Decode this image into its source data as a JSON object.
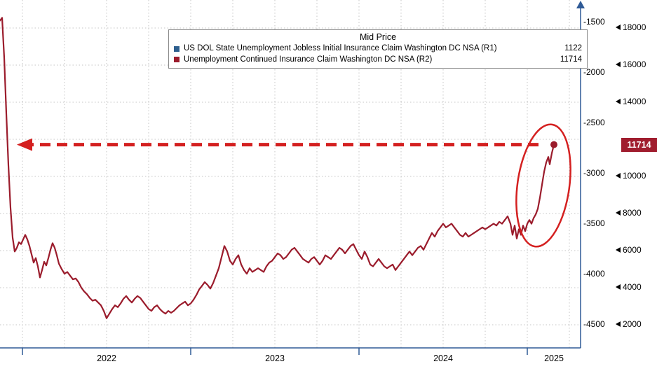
{
  "colors": {
    "line": "#9b1c2c",
    "annotation": "#d42020",
    "badge_bg": "#a01d2e",
    "badge_text": "#ffffff",
    "legend_swatch_blue": "#2e5f8e",
    "legend_swatch_red": "#9b1c2c",
    "axis_line": "#2f5a96",
    "grid_line": "#c4c4c4"
  },
  "legend": {
    "title": "Mid Price",
    "entries": [
      {
        "label": "US DOL State Unemployment Jobless Initial Insurance Claim Washington DC NSA  (R1)",
        "value": "1122"
      },
      {
        "label": "Unemployment Continued Insurance Claim Washington DC NSA  (R2)",
        "value": "11714"
      }
    ]
  },
  "badge": {
    "label": "11714"
  },
  "chart_data": {
    "type": "line",
    "title": "Mid Price",
    "grid": "dotted",
    "x_axis": {
      "tick_labels": [
        "2022",
        "2023",
        "2024",
        "2025"
      ]
    },
    "y_axis_inner_r1": {
      "tick_labels": [
        "-1500",
        "-2000",
        "-2500",
        "-3000",
        "-3500",
        "-4000",
        "-4500"
      ]
    },
    "y_axis_outer_r2": {
      "visible_tick_labels": [
        "18000",
        "16000",
        "14000",
        "10000",
        "8000",
        "6000",
        "4000",
        "2000"
      ],
      "grid_values": [
        18000,
        16000,
        14000,
        12000,
        10000,
        8000,
        6000,
        4000,
        2000
      ],
      "label_covered_by_badge": "12000",
      "range": [
        1500,
        18800
      ]
    },
    "series": [
      {
        "name": "US DOL State Unemployment Jobless Initial Insurance Claim Washington DC NSA (R1)",
        "axis": "R1",
        "last_value": 1122,
        "plotted_visibly": false
      },
      {
        "name": "Unemployment Continued Insurance Claim Washington DC NSA (R2)",
        "axis": "R2",
        "last_value": 11714,
        "points": [
          [
            0,
            18400
          ],
          [
            3,
            18550
          ],
          [
            6,
            16400
          ],
          [
            9,
            13400
          ],
          [
            12,
            10600
          ],
          [
            15,
            8300
          ],
          [
            18,
            6700
          ],
          [
            21,
            5950
          ],
          [
            24,
            6150
          ],
          [
            27,
            6450
          ],
          [
            30,
            6350
          ],
          [
            33,
            6600
          ],
          [
            36,
            6850
          ],
          [
            39,
            6600
          ],
          [
            42,
            6250
          ],
          [
            45,
            5800
          ],
          [
            48,
            5350
          ],
          [
            51,
            5600
          ],
          [
            54,
            5150
          ],
          [
            57,
            4550
          ],
          [
            60,
            4950
          ],
          [
            63,
            5400
          ],
          [
            66,
            5200
          ],
          [
            69,
            5600
          ],
          [
            72,
            6050
          ],
          [
            75,
            6400
          ],
          [
            78,
            6150
          ],
          [
            81,
            5750
          ],
          [
            84,
            5300
          ],
          [
            88,
            5000
          ],
          [
            92,
            4750
          ],
          [
            96,
            4850
          ],
          [
            100,
            4650
          ],
          [
            104,
            4450
          ],
          [
            108,
            4500
          ],
          [
            112,
            4300
          ],
          [
            116,
            4000
          ],
          [
            120,
            3800
          ],
          [
            124,
            3650
          ],
          [
            128,
            3450
          ],
          [
            132,
            3300
          ],
          [
            136,
            3350
          ],
          [
            140,
            3200
          ],
          [
            144,
            3050
          ],
          [
            148,
            2750
          ],
          [
            152,
            2350
          ],
          [
            156,
            2600
          ],
          [
            160,
            2850
          ],
          [
            164,
            3050
          ],
          [
            168,
            2950
          ],
          [
            172,
            3150
          ],
          [
            176,
            3400
          ],
          [
            180,
            3550
          ],
          [
            184,
            3350
          ],
          [
            188,
            3200
          ],
          [
            192,
            3400
          ],
          [
            196,
            3550
          ],
          [
            200,
            3450
          ],
          [
            204,
            3250
          ],
          [
            208,
            3050
          ],
          [
            212,
            2850
          ],
          [
            216,
            2750
          ],
          [
            220,
            2950
          ],
          [
            224,
            3050
          ],
          [
            228,
            2850
          ],
          [
            232,
            2700
          ],
          [
            236,
            2600
          ],
          [
            240,
            2750
          ],
          [
            244,
            2650
          ],
          [
            248,
            2750
          ],
          [
            252,
            2900
          ],
          [
            256,
            3050
          ],
          [
            260,
            3150
          ],
          [
            264,
            3250
          ],
          [
            268,
            3050
          ],
          [
            272,
            3150
          ],
          [
            276,
            3350
          ],
          [
            280,
            3600
          ],
          [
            284,
            3900
          ],
          [
            288,
            4100
          ],
          [
            292,
            4300
          ],
          [
            296,
            4150
          ],
          [
            300,
            3950
          ],
          [
            304,
            4250
          ],
          [
            308,
            4650
          ],
          [
            312,
            5050
          ],
          [
            316,
            5650
          ],
          [
            320,
            6250
          ],
          [
            324,
            5950
          ],
          [
            328,
            5450
          ],
          [
            332,
            5250
          ],
          [
            336,
            5550
          ],
          [
            340,
            5750
          ],
          [
            344,
            5250
          ],
          [
            348,
            4950
          ],
          [
            352,
            4750
          ],
          [
            356,
            5050
          ],
          [
            360,
            4850
          ],
          [
            364,
            4950
          ],
          [
            368,
            5050
          ],
          [
            372,
            4950
          ],
          [
            376,
            4850
          ],
          [
            380,
            5150
          ],
          [
            384,
            5350
          ],
          [
            388,
            5450
          ],
          [
            392,
            5650
          ],
          [
            396,
            5850
          ],
          [
            400,
            5750
          ],
          [
            404,
            5550
          ],
          [
            408,
            5650
          ],
          [
            412,
            5850
          ],
          [
            416,
            6050
          ],
          [
            420,
            6150
          ],
          [
            424,
            5950
          ],
          [
            428,
            5750
          ],
          [
            432,
            5550
          ],
          [
            436,
            5450
          ],
          [
            440,
            5350
          ],
          [
            444,
            5550
          ],
          [
            448,
            5650
          ],
          [
            452,
            5450
          ],
          [
            456,
            5250
          ],
          [
            460,
            5450
          ],
          [
            464,
            5750
          ],
          [
            468,
            5650
          ],
          [
            472,
            5550
          ],
          [
            476,
            5750
          ],
          [
            480,
            5950
          ],
          [
            484,
            6150
          ],
          [
            488,
            6050
          ],
          [
            492,
            5850
          ],
          [
            496,
            6050
          ],
          [
            500,
            6250
          ],
          [
            504,
            6350
          ],
          [
            508,
            6050
          ],
          [
            512,
            5750
          ],
          [
            516,
            5550
          ],
          [
            520,
            5950
          ],
          [
            524,
            5650
          ],
          [
            528,
            5250
          ],
          [
            532,
            5150
          ],
          [
            536,
            5350
          ],
          [
            540,
            5550
          ],
          [
            544,
            5350
          ],
          [
            548,
            5150
          ],
          [
            552,
            5050
          ],
          [
            556,
            5150
          ],
          [
            560,
            5250
          ],
          [
            564,
            4950
          ],
          [
            568,
            5150
          ],
          [
            572,
            5350
          ],
          [
            576,
            5550
          ],
          [
            580,
            5750
          ],
          [
            584,
            5950
          ],
          [
            588,
            5750
          ],
          [
            592,
            5950
          ],
          [
            596,
            6150
          ],
          [
            600,
            6250
          ],
          [
            604,
            6050
          ],
          [
            608,
            6350
          ],
          [
            612,
            6650
          ],
          [
            616,
            6950
          ],
          [
            620,
            6750
          ],
          [
            624,
            7050
          ],
          [
            628,
            7250
          ],
          [
            632,
            7450
          ],
          [
            636,
            7250
          ],
          [
            640,
            7350
          ],
          [
            644,
            7450
          ],
          [
            648,
            7250
          ],
          [
            652,
            7050
          ],
          [
            656,
            6850
          ],
          [
            660,
            6750
          ],
          [
            664,
            6950
          ],
          [
            668,
            6750
          ],
          [
            672,
            6850
          ],
          [
            676,
            6950
          ],
          [
            680,
            7050
          ],
          [
            684,
            7150
          ],
          [
            688,
            7250
          ],
          [
            692,
            7150
          ],
          [
            696,
            7250
          ],
          [
            700,
            7350
          ],
          [
            704,
            7450
          ],
          [
            708,
            7350
          ],
          [
            712,
            7550
          ],
          [
            716,
            7450
          ],
          [
            720,
            7650
          ],
          [
            724,
            7850
          ],
          [
            728,
            7450
          ],
          [
            731,
            6850
          ],
          [
            734,
            7350
          ],
          [
            737,
            6650
          ],
          [
            740,
            7150
          ],
          [
            743,
            6850
          ],
          [
            746,
            7350
          ],
          [
            749,
            7050
          ],
          [
            752,
            7450
          ],
          [
            755,
            7650
          ],
          [
            758,
            7450
          ],
          [
            761,
            7750
          ],
          [
            764,
            7950
          ],
          [
            767,
            8250
          ],
          [
            770,
            8850
          ],
          [
            773,
            9550
          ],
          [
            776,
            10250
          ],
          [
            779,
            10750
          ],
          [
            782,
            11050
          ],
          [
            784,
            10650
          ],
          [
            787,
            11250
          ],
          [
            790,
            11714
          ]
        ]
      }
    ],
    "annotations": [
      {
        "type": "dashed-arrow-left",
        "at_value": 11714,
        "color": "#d42020"
      },
      {
        "type": "ellipse-highlight",
        "target": "early-2025 spike in continued claims",
        "color": "#d42020"
      },
      {
        "type": "last-value-badge",
        "value": 11714
      }
    ]
  }
}
